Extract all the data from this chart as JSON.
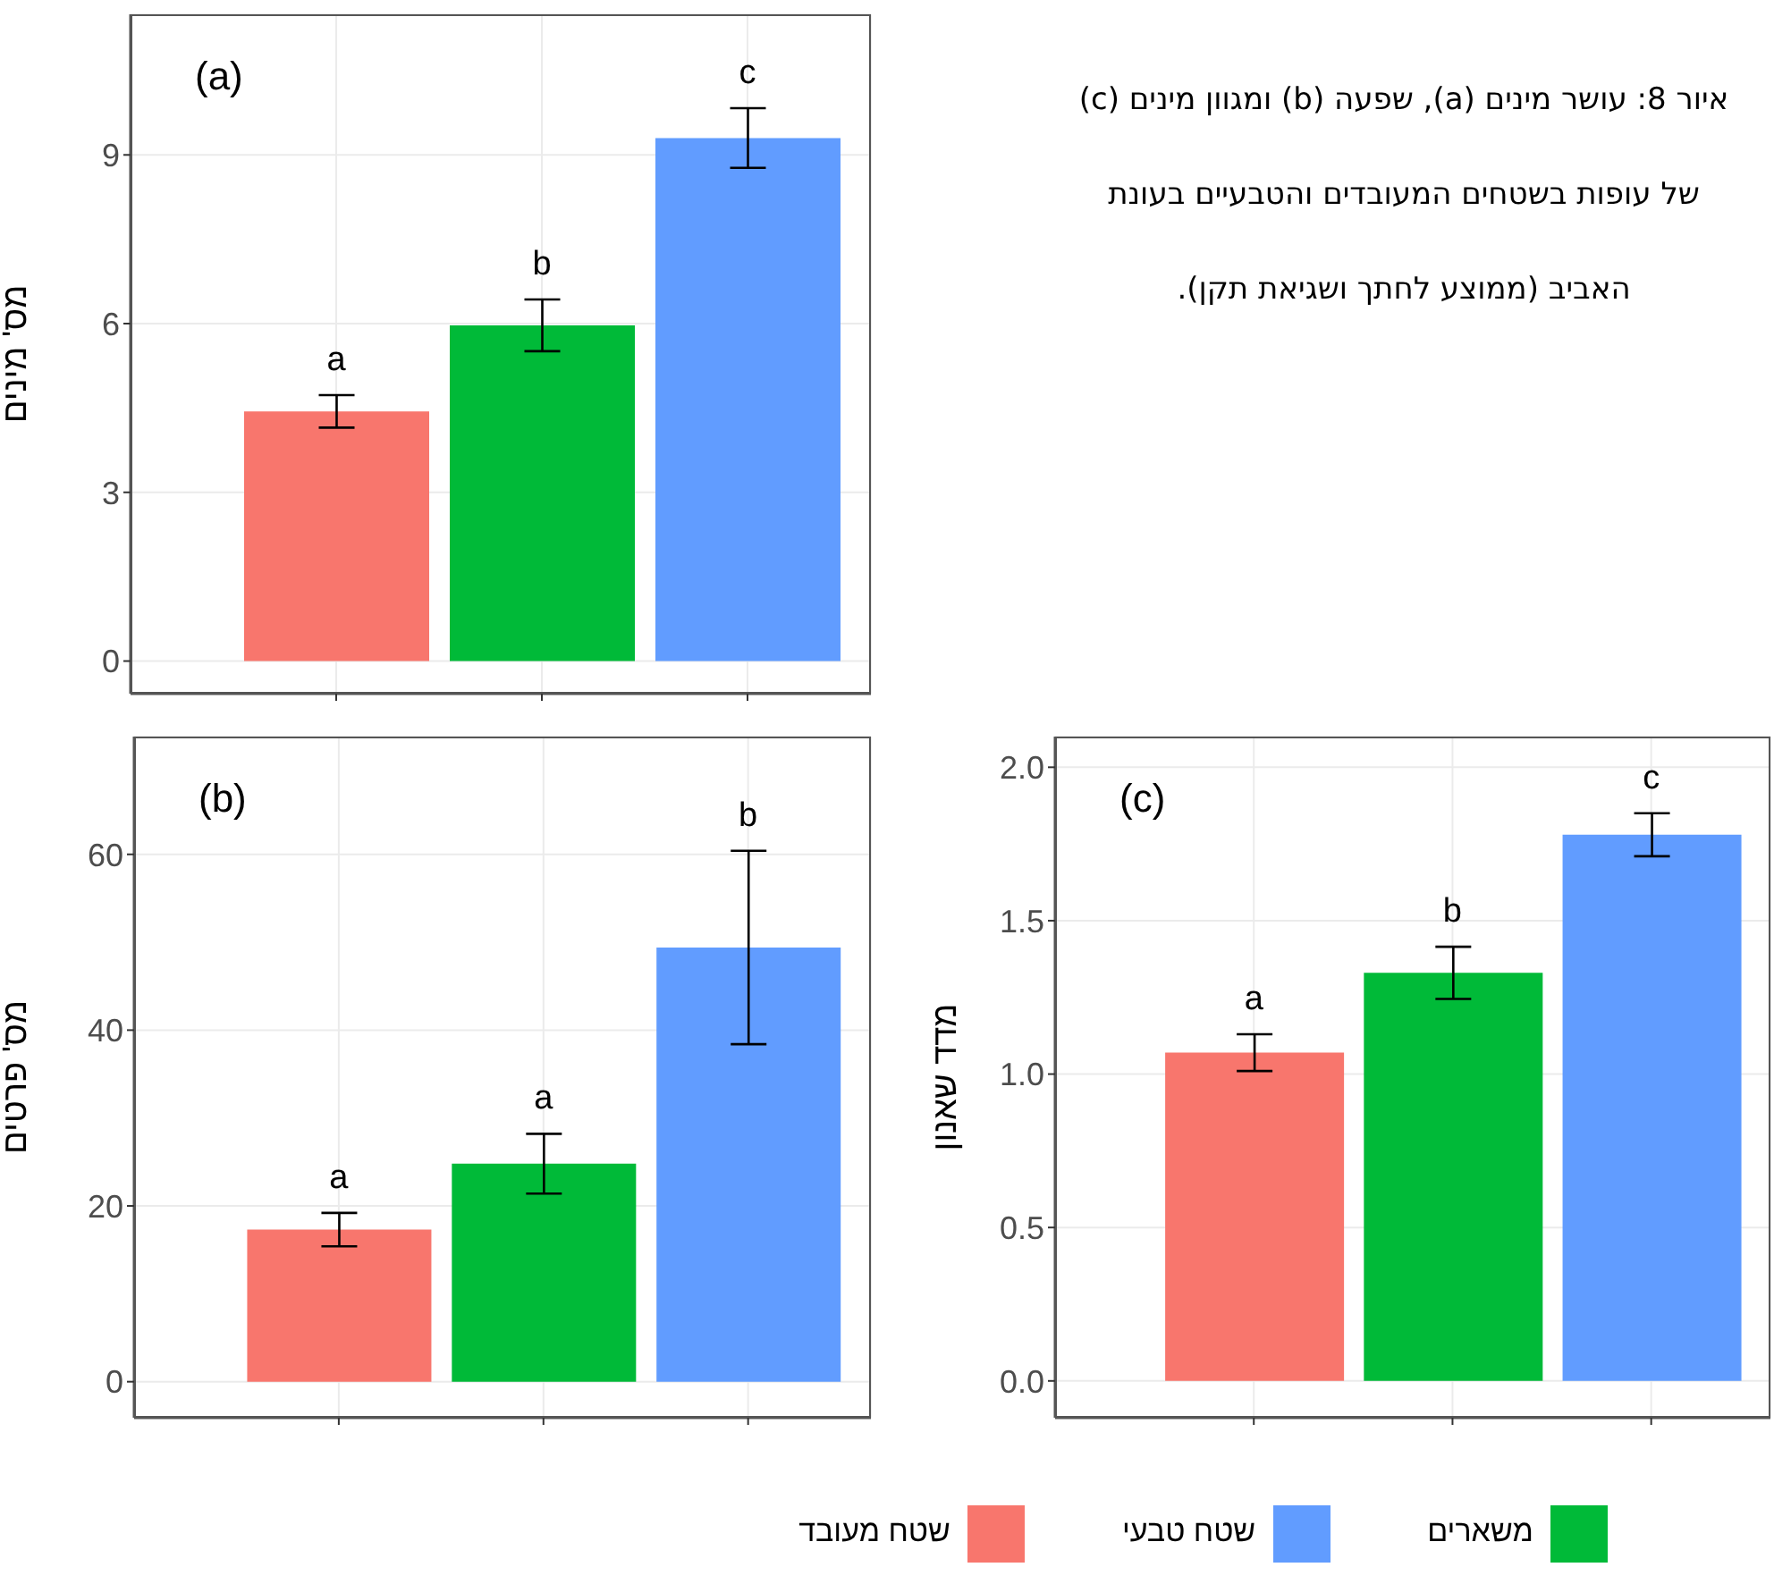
{
  "chart_data": [
    {
      "type": "bar",
      "categories": [
        null,
        null,
        null
      ],
      "stacked": true,
      "ylabel": "מס' מינים",
      "ylim": [
        -0.58,
        11.5
      ],
      "yticks": [
        0,
        3,
        6,
        9
      ],
      "grid": true,
      "series": [
        {
          "color": "#f8766d",
          "values": [
            4.44,
            null,
            null
          ],
          "errors": [
            0.29,
            null,
            null
          ]
        },
        {
          "color": "#00ba38",
          "values": [
            null,
            5.97,
            null
          ],
          "errors": [
            null,
            0.46,
            null
          ]
        },
        {
          "color": "#619cff",
          "values": [
            null,
            null,
            9.3
          ],
          "errors": [
            null,
            null,
            0.53
          ]
        }
      ],
      "annotations": [
        "(a)",
        "a",
        "b",
        "c"
      ]
    },
    {
      "type": "other",
      "title": "איור 8: עושר מינים (a), שפעה (b) ומגוון מינים (c) של עופות בשטחים המעובדים והטבעיים בעונת האביב (ממוצע לחתך ושגיאת תקן)."
    },
    {
      "type": "bar",
      "categories": [
        null,
        null,
        null
      ],
      "stacked": true,
      "ylabel": "מס' פרטים",
      "ylim": [
        -4.1,
        73.4
      ],
      "yticks": [
        0,
        20,
        40,
        60
      ],
      "grid": true,
      "series": [
        {
          "color": "#f8766d",
          "values": [
            17.3,
            null,
            null
          ],
          "errors": [
            1.9,
            null,
            null
          ]
        },
        {
          "color": "#00ba38",
          "values": [
            null,
            24.8,
            null
          ],
          "errors": [
            null,
            3.4,
            null
          ]
        },
        {
          "color": "#619cff",
          "values": [
            null,
            null,
            49.4
          ],
          "errors": [
            null,
            null,
            11
          ]
        }
      ],
      "annotations": [
        "(b)",
        "a",
        "a",
        "b"
      ]
    },
    {
      "type": "bar",
      "categories": [
        null,
        null,
        null
      ],
      "stacked": true,
      "ylabel": "מדד שאנון",
      "ylim": [
        -0.12,
        2.1
      ],
      "yticks": [
        {
          "value": 0,
          "label": "0.0"
        },
        {
          "value": 0.5,
          "label": "0.5"
        },
        {
          "value": 1,
          "label": "1.0"
        },
        {
          "value": 1.5,
          "label": "1.5"
        },
        {
          "value": 2,
          "label": "2.0"
        }
      ],
      "grid": true,
      "legend": "bottom",
      "series": [
        {
          "name": "שטח מעובד",
          "color": "#f8766d",
          "values": [
            1.07,
            null,
            null
          ],
          "errors": [
            0.06,
            null,
            null
          ]
        },
        {
          "name": "משארים",
          "color": "#00ba38",
          "values": [
            null,
            1.33,
            null
          ],
          "errors": [
            null,
            0.085,
            null
          ]
        },
        {
          "name": "שטח טבעי",
          "color": "#619cff",
          "values": [
            null,
            null,
            1.78
          ],
          "errors": [
            null,
            null,
            0.07
          ]
        }
      ],
      "annotations": [
        "(c)",
        "a",
        "b",
        "c"
      ]
    }
  ]
}
